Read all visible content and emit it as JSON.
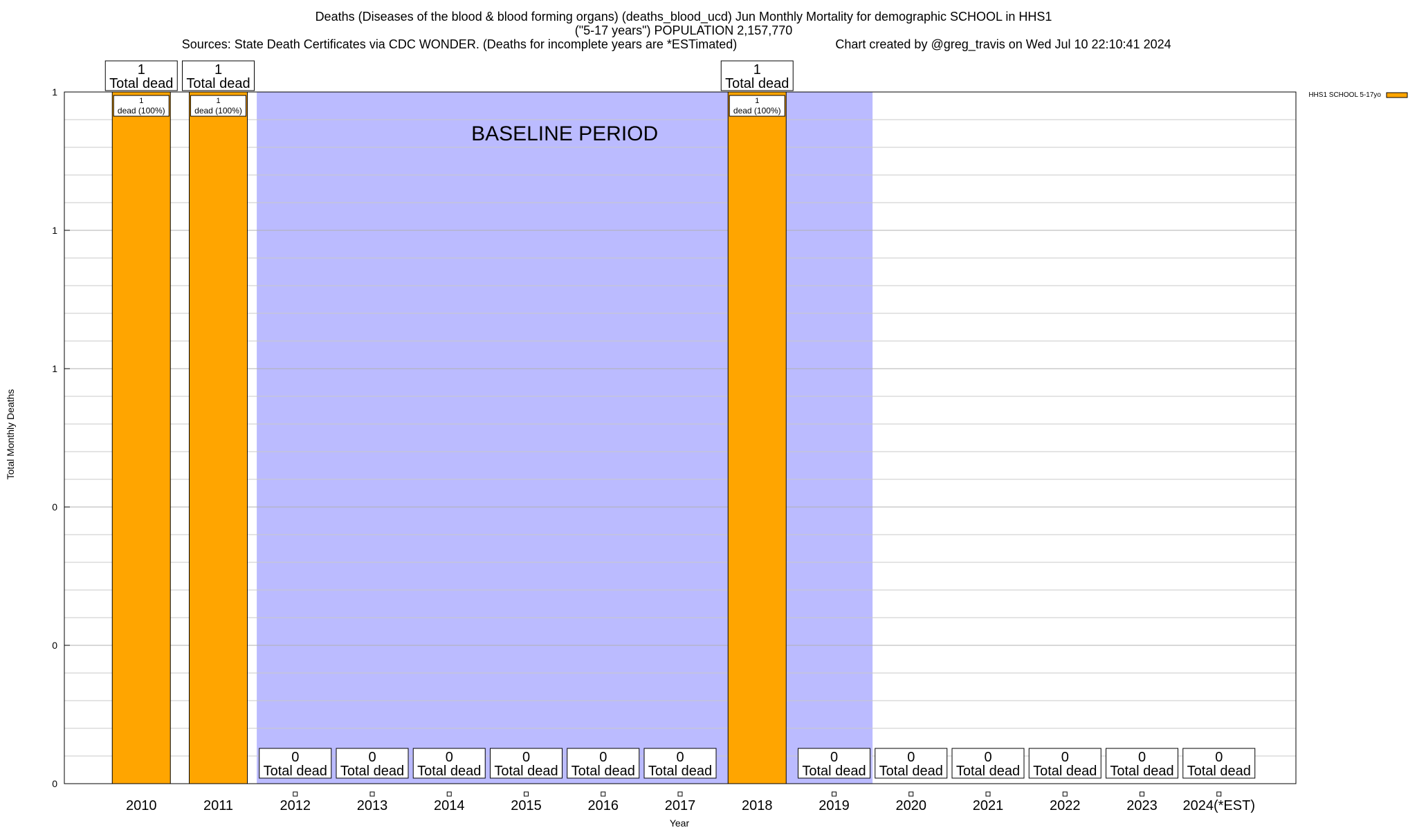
{
  "chart_data": {
    "type": "bar",
    "title_lines": [
      "Deaths (Diseases of the blood & blood forming organs) (deaths_blood_ucd) Jun Monthly Mortality for demographic SCHOOL in HHS1",
      "(\"5-17 years\") POPULATION 2,157,770",
      "Sources: State Death Certificates via CDC WONDER. (Deaths for incomplete years are *ESTimated)"
    ],
    "credit": "Chart created by @greg_travis on Wed Jul 10 22:10:41 2024",
    "xlabel": "Year",
    "ylabel": "Total Monthly Deaths",
    "categories": [
      "2010",
      "2011",
      "2012",
      "2013",
      "2014",
      "2015",
      "2016",
      "2017",
      "2018",
      "2019",
      "2020",
      "2021",
      "2022",
      "2023",
      "2024(*EST)"
    ],
    "series": [
      {
        "name": "HHS1 SCHOOL 5-17yo",
        "color": "#ffa500",
        "values": [
          1,
          1,
          0,
          0,
          0,
          0,
          0,
          0,
          1,
          0,
          0,
          0,
          0,
          0,
          0
        ]
      }
    ],
    "total_labels": [
      "1\nTotal dead",
      "1\nTotal dead",
      "0\nTotal dead",
      "0\nTotal dead",
      "0\nTotal dead",
      "0\nTotal dead",
      "0\nTotal dead",
      "0\nTotal dead",
      "1\nTotal dead",
      "0\nTotal dead",
      "0\nTotal dead",
      "0\nTotal dead",
      "0\nTotal dead",
      "0\nTotal dead",
      "0\nTotal dead"
    ],
    "segment_labels": [
      "1\ndead (100%)",
      "1\ndead (100%)",
      "",
      "",
      "",
      "",
      "",
      "",
      "1\ndead (100%)",
      "",
      "",
      "",
      "",
      "",
      ""
    ],
    "ylim": [
      0,
      1
    ],
    "yticks": [
      0,
      0.2,
      0.4,
      0.6,
      0.8,
      1.0
    ],
    "ytick_labels": [
      "0",
      "0",
      "0",
      "1",
      "1",
      "1"
    ],
    "grid": true,
    "baseline_period": {
      "label": "BASELINE PERIOD",
      "start_category": "2012",
      "end_category": "2019",
      "color": "#bbbbff"
    },
    "legend_position": "top-right"
  }
}
